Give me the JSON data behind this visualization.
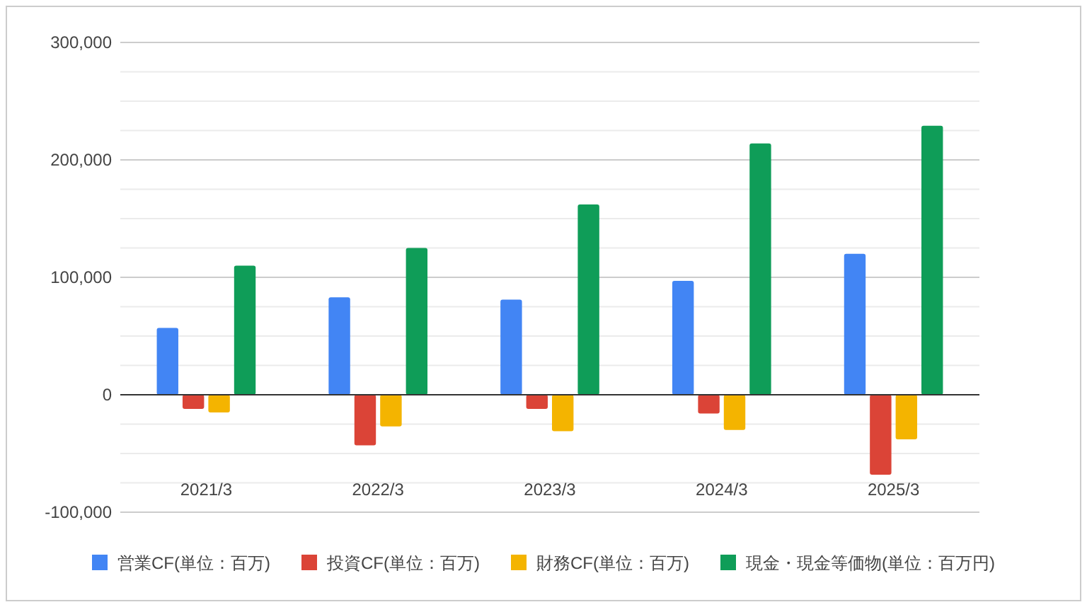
{
  "chart_data": {
    "type": "bar",
    "categories": [
      "2021/3",
      "2022/3",
      "2023/3",
      "2024/3",
      "2025/3"
    ],
    "series": [
      {
        "name": "営業CF(単位：百万)",
        "color": "#4285f4",
        "values": [
          57000,
          83000,
          81000,
          97000,
          120000
        ]
      },
      {
        "name": "投資CF(単位：百万)",
        "color": "#db4437",
        "values": [
          -12000,
          -43000,
          -12000,
          -16000,
          -68000
        ]
      },
      {
        "name": "財務CF(単位：百万)",
        "color": "#f4b400",
        "values": [
          -15000,
          -27000,
          -31000,
          -30000,
          -38000
        ]
      },
      {
        "name": "現金・現金等価物(単位：百万円)",
        "color": "#0f9d58",
        "values": [
          110000,
          125000,
          162000,
          214000,
          229000
        ]
      }
    ],
    "ylim": [
      -100000,
      300000
    ],
    "yticks": [
      {
        "value": -100000,
        "label": "-100,000"
      },
      {
        "value": -75000,
        "label": null
      },
      {
        "value": -50000,
        "label": null
      },
      {
        "value": -25000,
        "label": null
      },
      {
        "value": 0,
        "label": "0"
      },
      {
        "value": 25000,
        "label": null
      },
      {
        "value": 50000,
        "label": null
      },
      {
        "value": 75000,
        "label": null
      },
      {
        "value": 100000,
        "label": "100,000"
      },
      {
        "value": 125000,
        "label": null
      },
      {
        "value": 150000,
        "label": null
      },
      {
        "value": 175000,
        "label": null
      },
      {
        "value": 200000,
        "label": "200,000"
      },
      {
        "value": 225000,
        "label": null
      },
      {
        "value": 250000,
        "label": null
      },
      {
        "value": 275000,
        "label": null
      },
      {
        "value": 300000,
        "label": "300,000"
      }
    ],
    "grid": true,
    "legend": "bottom"
  }
}
